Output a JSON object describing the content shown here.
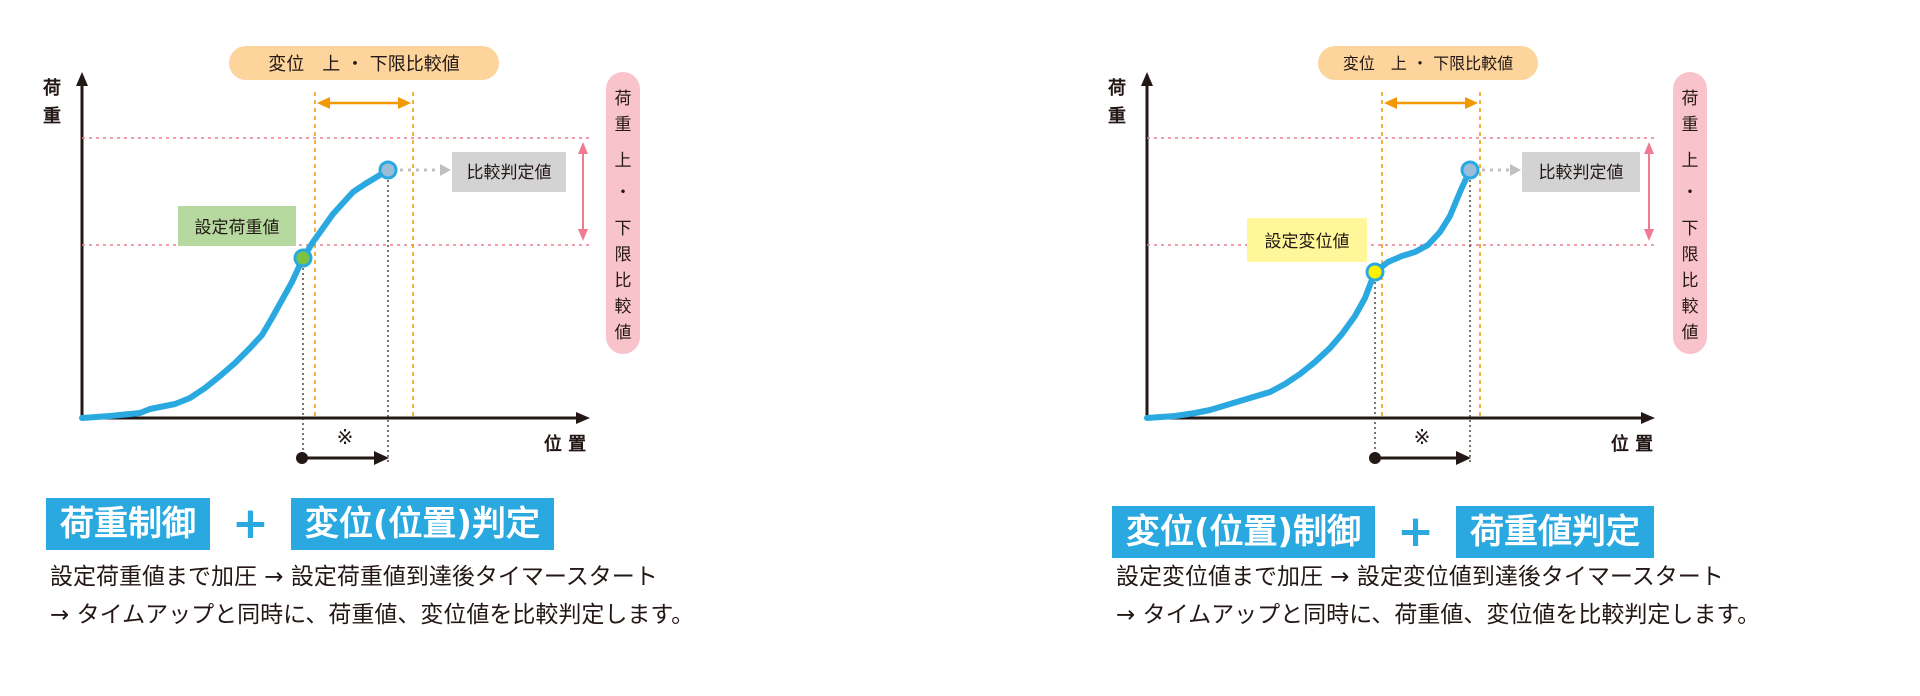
{
  "panels": [
    {
      "axis": {
        "y_label_1": "荷",
        "y_label_2": "重",
        "x_label": "位 置"
      },
      "disp_range_label": "変位　上 ・ 下限比較値",
      "load_range_label": [
        "荷",
        "重",
        "上",
        "・",
        "下",
        "限",
        "比",
        "較",
        "値"
      ],
      "setpoint_label": "設定荷重値",
      "judge_label": "比較判定値",
      "timer_mark": "※",
      "headings": [
        "荷重制御",
        "変位(位置)判定"
      ],
      "plus": "+",
      "desc_lines": [
        "設定荷重値まで加圧 → 設定荷重値到達後タイマースタート",
        "→ タイムアップと同時に、荷重値、変位値を比較判定します。"
      ]
    },
    {
      "axis": {
        "y_label_1": "荷",
        "y_label_2": "重",
        "x_label": "位 置"
      },
      "disp_range_label": "変位　上 ・ 下限比較値",
      "load_range_label": [
        "荷",
        "重",
        "上",
        "・",
        "下",
        "限",
        "比",
        "較",
        "値"
      ],
      "setpoint_label": "設定変位値",
      "judge_label": "比較判定値",
      "timer_mark": "※",
      "headings": [
        "変位(位置)制御",
        "荷重値判定"
      ],
      "plus": "+",
      "desc_lines": [
        "設定変位値まで加圧 → 設定変位値到達後タイマースタート",
        "→ タイムアップと同時に、荷重値、変位値を比較判定します。"
      ]
    }
  ],
  "colors": {
    "curve": "#29a9e0",
    "heading_bg": "#29a9e0",
    "orange_pill": "#fcd49c",
    "orange_line": "#f39800",
    "pink_pill": "#f9c3cb",
    "pink_line": "#ee7b8f",
    "setpoint_green_bg": "#b5d99e",
    "setpoint_green_dot": "#7cc242",
    "setpoint_yellow_bg": "#fff799",
    "setpoint_yellow_dot": "#fff100",
    "judge_bg": "#d3d3d4",
    "judge_dot": "#9cbdd9"
  }
}
